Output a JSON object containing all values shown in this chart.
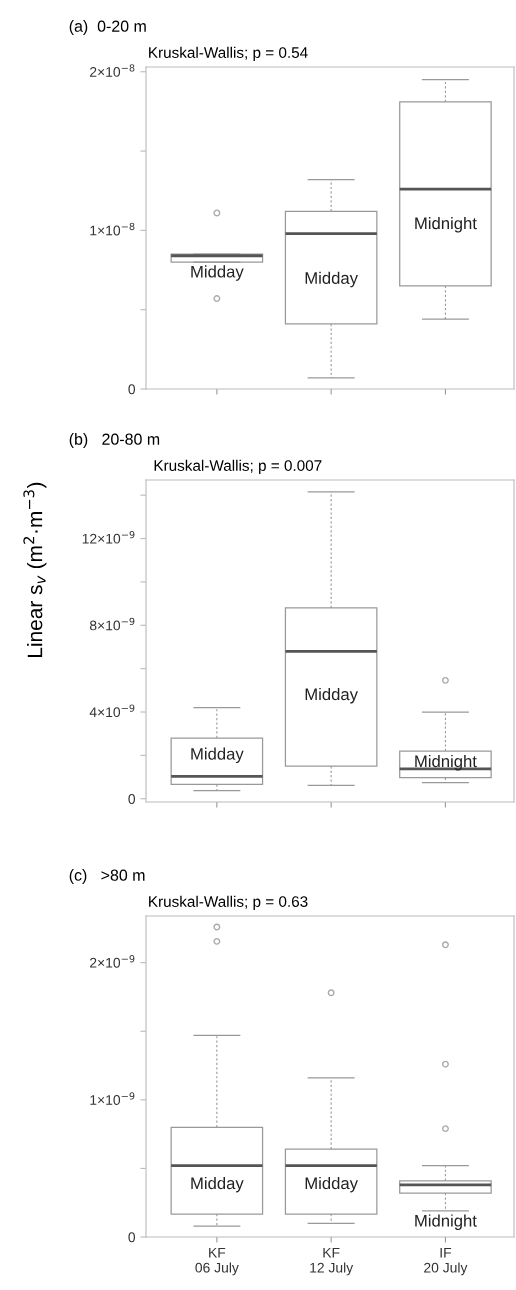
{
  "chart_data": [
    {
      "type": "box",
      "title": "(a)  0-20 m",
      "subtitle": "Kruskal-Wallis; p = 0.54",
      "categories": [
        null,
        null,
        null
      ],
      "tick_labels": "y",
      "ylim": [
        0,
        2.03e-08
      ],
      "yticks": [
        {
          "value": 0,
          "label": "0"
        },
        {
          "value": 5e-09,
          "label": null
        },
        {
          "value": 1e-08,
          "label": "1×10$^{−8}$"
        },
        {
          "value": 1.5e-08,
          "label": null
        },
        {
          "value": 2e-08,
          "label": "2×10$^{−8}$"
        }
      ],
      "boxes": [
        {
          "low": 8e-09,
          "q1": 8e-09,
          "median": 8.4e-09,
          "q3": 8.5e-09,
          "high": 8.5e-09,
          "outliers": [
            1.11e-08,
            5.7e-09
          ]
        },
        {
          "low": 7e-10,
          "q1": 4.1e-09,
          "median": 9.8e-09,
          "q3": 1.12e-08,
          "high": 1.32e-08
        },
        {
          "low": 4.4e-09,
          "q1": 6.5e-09,
          "median": 1.26e-08,
          "q3": 1.81e-08,
          "high": 1.95e-08
        }
      ],
      "annotations": [
        "Midday",
        "Midday",
        "Midnight"
      ]
    },
    {
      "type": "box",
      "title": "(b)   20-80 m",
      "subtitle": "Kruskal-Wallis; p = 0.007",
      "ylabel": "Linear s$_{v}$ (m$^{2}$·m$^{−3}$)",
      "categories": [
        null,
        null,
        null
      ],
      "tick_labels": "y",
      "ylim": [
        -1.5e-10,
        1.47e-08
      ],
      "yticks": [
        {
          "value": 0,
          "label": "0"
        },
        {
          "value": 2e-09,
          "label": null
        },
        {
          "value": 4e-09,
          "label": "4×10$^{−9}$"
        },
        {
          "value": 6e-09,
          "label": null
        },
        {
          "value": 8e-09,
          "label": "8×10$^{−9}$"
        },
        {
          "value": 1e-08,
          "label": null
        },
        {
          "value": 1.2e-08,
          "label": "12×10$^{−9}$"
        },
        {
          "value": 1.4e-08,
          "label": null
        }
      ],
      "boxes": [
        {
          "low": 3.7e-10,
          "q1": 6.6e-10,
          "median": 1.03e-09,
          "q3": 2.8e-09,
          "high": 4.2e-09
        },
        {
          "low": 6.2e-10,
          "q1": 1.5e-09,
          "median": 6.8e-09,
          "q3": 8.8e-09,
          "high": 1.415e-08
        },
        {
          "low": 7.4e-10,
          "q1": 9.7e-10,
          "median": 1.38e-09,
          "q3": 2.2e-09,
          "high": 4e-09,
          "outliers": [
            5.46e-09
          ]
        }
      ],
      "annotations": [
        "Midday",
        "Midday",
        "Midnight"
      ]
    },
    {
      "type": "box",
      "title": "(c)   >80 m",
      "subtitle": "Kruskal-Wallis; p = 0.63",
      "categories": [
        "KF\n06 July",
        "KF\n12 July",
        "IF\n20 July"
      ],
      "ylim": [
        0,
        2.34e-09
      ],
      "yticks": [
        {
          "value": 0,
          "label": "0"
        },
        {
          "value": 5e-10,
          "label": null
        },
        {
          "value": 1e-09,
          "label": "1×10$^{−9}$"
        },
        {
          "value": 1.5e-09,
          "label": null
        },
        {
          "value": 2e-09,
          "label": "2×10$^{−9}$"
        }
      ],
      "boxes": [
        {
          "low": 8e-11,
          "q1": 1.67e-10,
          "median": 5.2e-10,
          "q3": 8e-10,
          "high": 1.47e-09,
          "outliers": [
            2.26e-09,
            2.155e-09
          ]
        },
        {
          "low": 1e-10,
          "q1": 1.67e-10,
          "median": 5.2e-10,
          "q3": 6.4e-10,
          "high": 1.16e-09,
          "outliers": [
            1.78e-09
          ]
        },
        {
          "low": 1.9e-10,
          "q1": 3.2e-10,
          "median": 3.8e-10,
          "q3": 4.1e-10,
          "high": 5.2e-10,
          "outliers": [
            2.13e-09,
            1.26e-09,
            7.9e-10
          ]
        }
      ],
      "annotations": [
        "Midday",
        "Midday",
        "Midnight"
      ]
    }
  ]
}
